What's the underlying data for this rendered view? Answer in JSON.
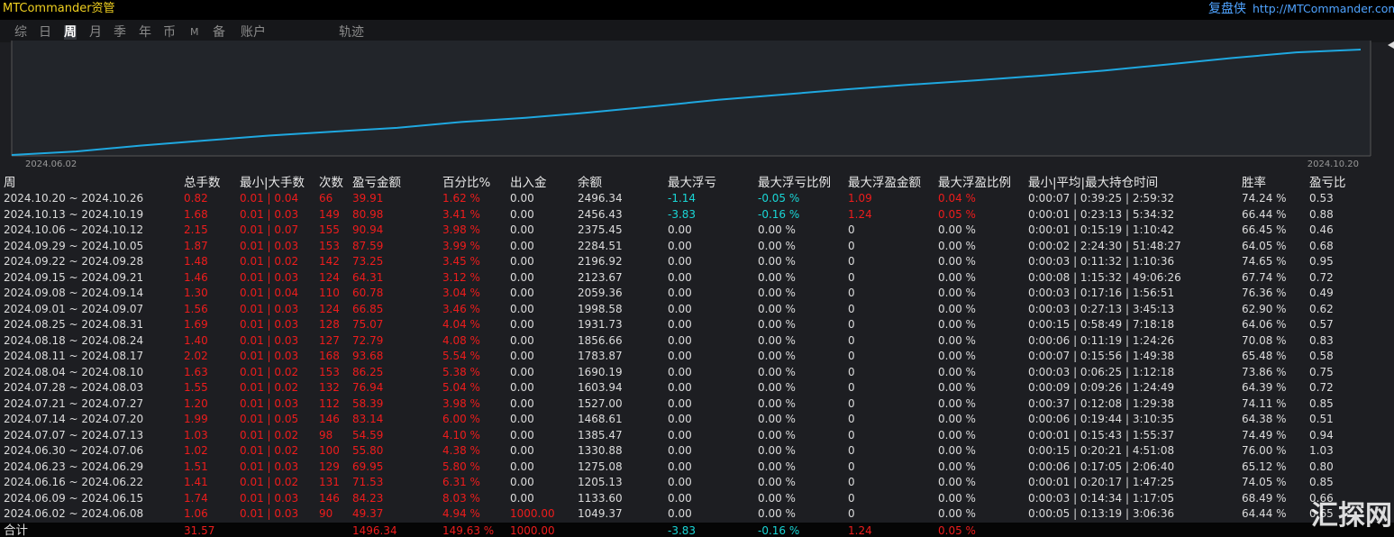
{
  "header": {
    "title": "MTCommander资管",
    "brand": "复盘侠",
    "url": "http://MTCommander.com"
  },
  "tabs": {
    "items": [
      "综",
      "日",
      "周",
      "月",
      "季",
      "年",
      "币",
      "M",
      "备",
      "账户",
      "轨迹"
    ],
    "active": "周"
  },
  "chart_data": {
    "type": "line",
    "x_labels": [
      "2024.06.02",
      "2024.10.20"
    ],
    "color": "#1fa8e0",
    "ylim": [
      1000,
      2560
    ],
    "values": [
      1000,
      1049.37,
      1133.6,
      1205.13,
      1275.08,
      1330.88,
      1385.47,
      1468.61,
      1527.0,
      1603.94,
      1690.19,
      1783.87,
      1856.66,
      1931.73,
      1998.58,
      2059.36,
      2123.67,
      2196.92,
      2284.51,
      2375.45,
      2456.43,
      2496.34
    ]
  },
  "table": {
    "columns": [
      "周",
      "总手数",
      "最小|大手数",
      "次数",
      "盈亏金额",
      "百分比%",
      "出入金",
      "余额",
      "最大浮亏",
      "最大浮亏比例",
      "最大浮盈金额",
      "最大浮盈比例",
      "最小|平均|最大持仓时间",
      "胜率",
      "盈亏比"
    ],
    "rows": [
      [
        "2024.10.20 ~ 2024.10.26",
        "0.82",
        "0.01 | 0.04",
        "66",
        "39.91",
        "1.62 %",
        "0.00",
        "2496.34",
        "-1.14",
        "-0.05 %",
        "1.09",
        "0.04 %",
        "0:00:07 | 0:39:25 | 2:59:32",
        "74.24 %",
        "0.53"
      ],
      [
        "2024.10.13 ~ 2024.10.19",
        "1.68",
        "0.01 | 0.03",
        "149",
        "80.98",
        "3.41 %",
        "0.00",
        "2456.43",
        "-3.83",
        "-0.16 %",
        "1.24",
        "0.05 %",
        "0:00:01 | 0:23:13 | 5:34:32",
        "66.44 %",
        "0.88"
      ],
      [
        "2024.10.06 ~ 2024.10.12",
        "2.15",
        "0.01 | 0.07",
        "155",
        "90.94",
        "3.98 %",
        "0.00",
        "2375.45",
        "0.00",
        "0.00 %",
        "0",
        "0.00 %",
        "0:00:01 | 0:15:19 | 1:10:42",
        "66.45 %",
        "0.46"
      ],
      [
        "2024.09.29 ~ 2024.10.05",
        "1.87",
        "0.01 | 0.03",
        "153",
        "87.59",
        "3.99 %",
        "0.00",
        "2284.51",
        "0.00",
        "0.00 %",
        "0",
        "0.00 %",
        "0:00:02 | 2:24:30 | 51:48:27",
        "64.05 %",
        "0.68"
      ],
      [
        "2024.09.22 ~ 2024.09.28",
        "1.48",
        "0.01 | 0.02",
        "142",
        "73.25",
        "3.45 %",
        "0.00",
        "2196.92",
        "0.00",
        "0.00 %",
        "0",
        "0.00 %",
        "0:00:03 | 0:11:32 | 1:10:36",
        "74.65 %",
        "0.95"
      ],
      [
        "2024.09.15 ~ 2024.09.21",
        "1.46",
        "0.01 | 0.03",
        "124",
        "64.31",
        "3.12 %",
        "0.00",
        "2123.67",
        "0.00",
        "0.00 %",
        "0",
        "0.00 %",
        "0:00:08 | 1:15:32 | 49:06:26",
        "67.74 %",
        "0.72"
      ],
      [
        "2024.09.08 ~ 2024.09.14",
        "1.30",
        "0.01 | 0.04",
        "110",
        "60.78",
        "3.04 %",
        "0.00",
        "2059.36",
        "0.00",
        "0.00 %",
        "0",
        "0.00 %",
        "0:00:03 | 0:17:16 | 1:56:51",
        "76.36 %",
        "0.49"
      ],
      [
        "2024.09.01 ~ 2024.09.07",
        "1.56",
        "0.01 | 0.03",
        "124",
        "66.85",
        "3.46 %",
        "0.00",
        "1998.58",
        "0.00",
        "0.00 %",
        "0",
        "0.00 %",
        "0:00:03 | 0:27:13 | 3:45:13",
        "62.90 %",
        "0.62"
      ],
      [
        "2024.08.25 ~ 2024.08.31",
        "1.69",
        "0.01 | 0.03",
        "128",
        "75.07",
        "4.04 %",
        "0.00",
        "1931.73",
        "0.00",
        "0.00 %",
        "0",
        "0.00 %",
        "0:00:15 | 0:58:49 | 7:18:18",
        "64.06 %",
        "0.57"
      ],
      [
        "2024.08.18 ~ 2024.08.24",
        "1.40",
        "0.01 | 0.03",
        "127",
        "72.79",
        "4.08 %",
        "0.00",
        "1856.66",
        "0.00",
        "0.00 %",
        "0",
        "0.00 %",
        "0:00:06 | 0:11:19 | 1:24:26",
        "70.08 %",
        "0.83"
      ],
      [
        "2024.08.11 ~ 2024.08.17",
        "2.02",
        "0.01 | 0.03",
        "168",
        "93.68",
        "5.54 %",
        "0.00",
        "1783.87",
        "0.00",
        "0.00 %",
        "0",
        "0.00 %",
        "0:00:07 | 0:15:56 | 1:49:38",
        "65.48 %",
        "0.58"
      ],
      [
        "2024.08.04 ~ 2024.08.10",
        "1.63",
        "0.01 | 0.02",
        "153",
        "86.25",
        "5.38 %",
        "0.00",
        "1690.19",
        "0.00",
        "0.00 %",
        "0",
        "0.00 %",
        "0:00:03 | 0:06:25 | 1:12:18",
        "73.86 %",
        "0.75"
      ],
      [
        "2024.07.28 ~ 2024.08.03",
        "1.55",
        "0.01 | 0.02",
        "132",
        "76.94",
        "5.04 %",
        "0.00",
        "1603.94",
        "0.00",
        "0.00 %",
        "0",
        "0.00 %",
        "0:00:09 | 0:09:26 | 1:24:49",
        "64.39 %",
        "0.72"
      ],
      [
        "2024.07.21 ~ 2024.07.27",
        "1.20",
        "0.01 | 0.03",
        "112",
        "58.39",
        "3.98 %",
        "0.00",
        "1527.00",
        "0.00",
        "0.00 %",
        "0",
        "0.00 %",
        "0:00:37 | 0:12:08 | 1:29:38",
        "74.11 %",
        "0.85"
      ],
      [
        "2024.07.14 ~ 2024.07.20",
        "1.99",
        "0.01 | 0.05",
        "146",
        "83.14",
        "6.00 %",
        "0.00",
        "1468.61",
        "0.00",
        "0.00 %",
        "0",
        "0.00 %",
        "0:00:06 | 0:19:44 | 3:10:35",
        "64.38 %",
        "0.51"
      ],
      [
        "2024.07.07 ~ 2024.07.13",
        "1.03",
        "0.01 | 0.02",
        "98",
        "54.59",
        "4.10 %",
        "0.00",
        "1385.47",
        "0.00",
        "0.00 %",
        "0",
        "0.00 %",
        "0:00:01 | 0:15:43 | 1:55:37",
        "74.49 %",
        "0.94"
      ],
      [
        "2024.06.30 ~ 2024.07.06",
        "1.02",
        "0.01 | 0.02",
        "100",
        "55.80",
        "4.38 %",
        "0.00",
        "1330.88",
        "0.00",
        "0.00 %",
        "0",
        "0.00 %",
        "0:00:15 | 0:20:21 | 4:51:08",
        "76.00 %",
        "1.03"
      ],
      [
        "2024.06.23 ~ 2024.06.29",
        "1.51",
        "0.01 | 0.03",
        "129",
        "69.95",
        "5.80 %",
        "0.00",
        "1275.08",
        "0.00",
        "0.00 %",
        "0",
        "0.00 %",
        "0:00:06 | 0:17:05 | 2:06:40",
        "65.12 %",
        "0.80"
      ],
      [
        "2024.06.16 ~ 2024.06.22",
        "1.41",
        "0.01 | 0.02",
        "131",
        "71.53",
        "6.31 %",
        "0.00",
        "1205.13",
        "0.00",
        "0.00 %",
        "0",
        "0.00 %",
        "0:00:01 | 0:20:17 | 1:47:25",
        "74.05 %",
        "0.85"
      ],
      [
        "2024.06.09 ~ 2024.06.15",
        "1.74",
        "0.01 | 0.03",
        "146",
        "84.23",
        "8.03 %",
        "0.00",
        "1133.60",
        "0.00",
        "0.00 %",
        "0",
        "0.00 %",
        "0:00:03 | 0:14:34 | 1:17:05",
        "68.49 %",
        "0.66"
      ],
      [
        "2024.06.02 ~ 2024.06.08",
        "1.06",
        "0.01 | 0.03",
        "90",
        "49.37",
        "4.94 %",
        "1000.00",
        "1049.37",
        "0.00",
        "0.00 %",
        "0",
        "0.00 %",
        "0:00:05 | 0:13:19 | 3:06:36",
        "64.44 %",
        "0.65"
      ]
    ],
    "total": {
      "label": "合计",
      "lots": "31.57",
      "pnl": "1496.34",
      "percent": "149.63 %",
      "deposit": "1000.00",
      "max_float_loss": "-3.83",
      "max_float_loss_pct": "-0.16 %",
      "max_float_profit": "1.24",
      "max_float_profit_pct": "0.05 %"
    }
  },
  "watermark": "汇探网"
}
